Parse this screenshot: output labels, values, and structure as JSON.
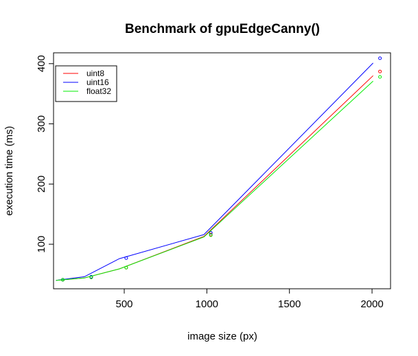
{
  "chart_data": {
    "type": "line",
    "title": "Benchmark of gpuEdgeCanny()",
    "xlabel": "image size (px)",
    "ylabel": "execution time (ms)",
    "xlim": [
      72,
      2112
    ],
    "ylim": [
      26,
      418
    ],
    "x_ticks": [
      500,
      1000,
      1500,
      2000
    ],
    "y_ticks": [
      100,
      200,
      300,
      400
    ],
    "legend_position": "top-left",
    "x": [
      128,
      300,
      512,
      1024,
      2048
    ],
    "series": [
      {
        "name": "uint8",
        "color": "#ff0000",
        "values": [
          41,
          45,
          61,
          116,
          387
        ],
        "line_values": [
          40,
          44,
          59,
          113,
          380
        ]
      },
      {
        "name": "uint16",
        "color": "#0000ff",
        "values": [
          41,
          46,
          77,
          119,
          409
        ],
        "line_values": [
          40,
          46,
          76,
          116,
          401
        ]
      },
      {
        "name": "float32",
        "color": "#00ee00",
        "values": [
          41,
          45,
          61,
          115,
          378
        ],
        "line_values": [
          40,
          44,
          59,
          112,
          371
        ]
      }
    ]
  }
}
